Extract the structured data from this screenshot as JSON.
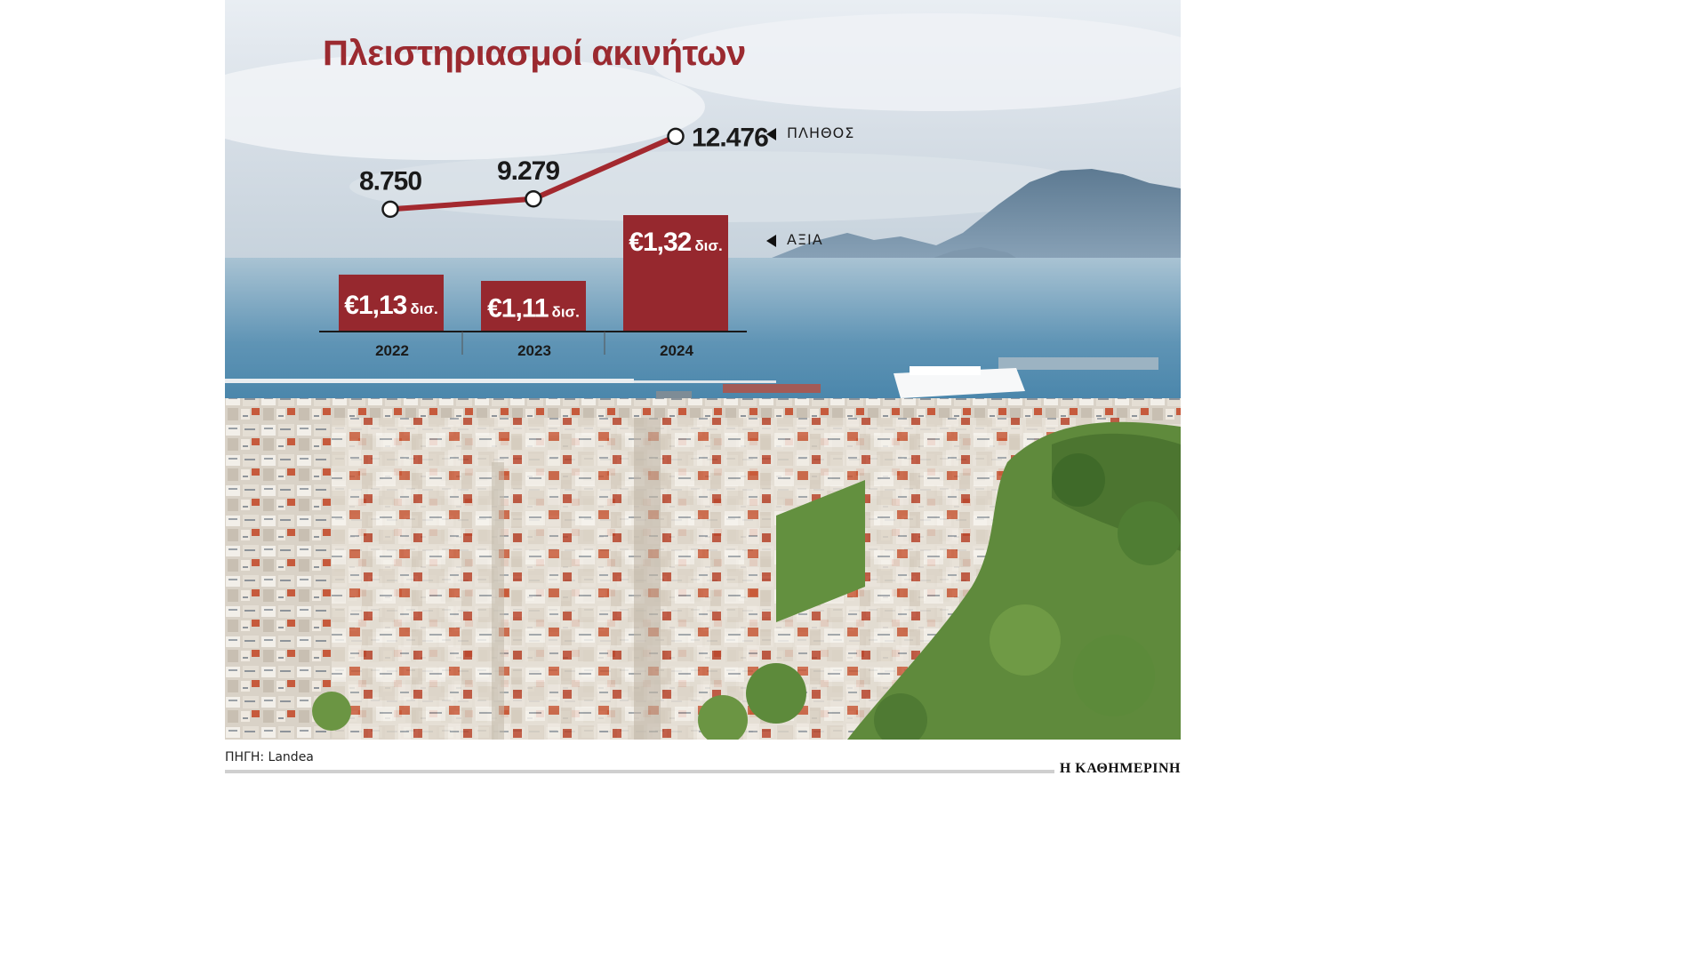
{
  "title": "Πλειστηριασμοί ακινήτων",
  "source": "ΠΗΓΗ: Landea",
  "brand": "Η ΚΑΘΗΜΕΡΙΝΗ",
  "colors": {
    "accent": "#9b2a30",
    "bar": "#96282e",
    "line": "#a3292f"
  },
  "chart_data": {
    "type": "bar+line",
    "categories": [
      "2022",
      "2023",
      "2024"
    ],
    "series": [
      {
        "name": "ΑΞΙΑ",
        "type": "bar",
        "values": [
          1.13,
          1.11,
          1.32
        ],
        "labels": [
          {
            "amount": "€1,13",
            "unit": "δισ."
          },
          {
            "amount": "€1,11",
            "unit": "δισ."
          },
          {
            "amount": "€1,32",
            "unit": "δισ."
          }
        ]
      },
      {
        "name": "ΠΛΗΘΟΣ",
        "type": "line",
        "values": [
          8750,
          9279,
          12476
        ],
        "labels": [
          "8.750",
          "9.279",
          "12.476"
        ]
      }
    ],
    "legend_position": "right",
    "grid": false
  }
}
